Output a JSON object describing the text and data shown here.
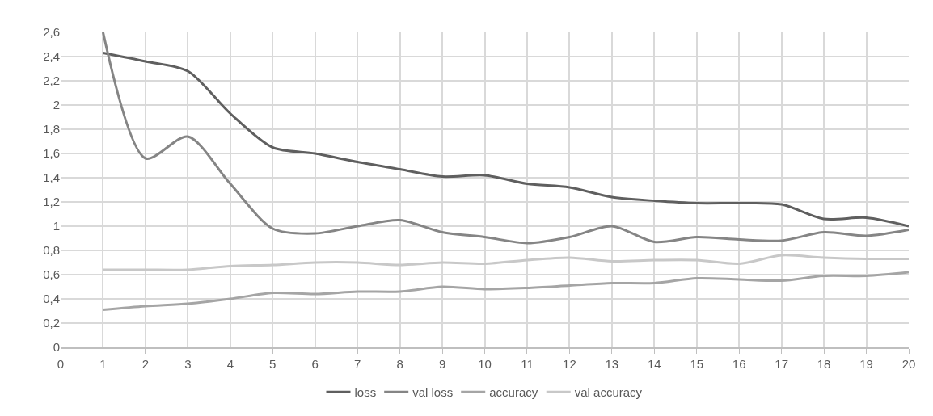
{
  "chart_data": {
    "type": "line",
    "x": [
      1,
      2,
      3,
      4,
      5,
      6,
      7,
      8,
      9,
      10,
      11,
      12,
      13,
      14,
      15,
      16,
      17,
      18,
      19,
      20
    ],
    "series": [
      {
        "name": "loss",
        "color": "#5f5f5f",
        "values": [
          2.43,
          2.36,
          2.28,
          1.93,
          1.65,
          1.6,
          1.53,
          1.47,
          1.41,
          1.42,
          1.35,
          1.32,
          1.24,
          1.21,
          1.19,
          1.19,
          1.18,
          1.06,
          1.07,
          1.0
        ]
      },
      {
        "name": "val loss",
        "color": "#858585",
        "values": [
          2.6,
          1.56,
          1.74,
          1.35,
          0.98,
          0.94,
          1.0,
          1.05,
          0.95,
          0.91,
          0.86,
          0.91,
          1.0,
          0.87,
          0.91,
          0.89,
          0.88,
          0.95,
          0.92,
          0.97
        ]
      },
      {
        "name": "accuracy",
        "color": "#a5a5a5",
        "values": [
          0.31,
          0.34,
          0.36,
          0.4,
          0.45,
          0.44,
          0.46,
          0.46,
          0.5,
          0.48,
          0.49,
          0.51,
          0.53,
          0.53,
          0.57,
          0.56,
          0.55,
          0.59,
          0.59,
          0.62
        ]
      },
      {
        "name": "val accuracy",
        "color": "#c8c8c8",
        "values": [
          0.64,
          0.64,
          0.64,
          0.67,
          0.68,
          0.7,
          0.7,
          0.68,
          0.7,
          0.69,
          0.72,
          0.74,
          0.71,
          0.72,
          0.72,
          0.69,
          0.76,
          0.74,
          0.73,
          0.73
        ]
      }
    ],
    "xlim": [
      0,
      20
    ],
    "xticks": [
      0,
      1,
      2,
      3,
      4,
      5,
      6,
      7,
      8,
      9,
      10,
      11,
      12,
      13,
      14,
      15,
      16,
      17,
      18,
      19,
      20
    ],
    "ylim": [
      0,
      2.6
    ],
    "yticks": [
      0,
      {
        "value": 0.2,
        "label": "0,2"
      },
      {
        "value": 0.4,
        "label": "0,4"
      },
      {
        "value": 0.6,
        "label": "0,6"
      },
      {
        "value": 0.8,
        "label": "0,8"
      },
      1,
      {
        "value": 1.2,
        "label": "1,2"
      },
      {
        "value": 1.4,
        "label": "1,4"
      },
      {
        "value": 1.6,
        "label": "1,6"
      },
      {
        "value": 1.8,
        "label": "1,8"
      },
      2,
      {
        "value": 2.2,
        "label": "2,2"
      },
      {
        "value": 2.4,
        "label": "2,4"
      },
      {
        "value": 2.6,
        "label": "2,6"
      }
    ],
    "grid": true,
    "legend": "bottom",
    "marker": "none",
    "line_style": "solid"
  }
}
